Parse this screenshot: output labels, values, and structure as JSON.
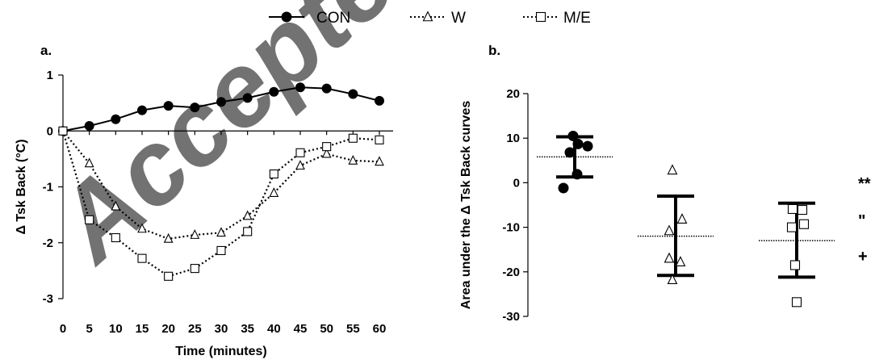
{
  "watermark": "Accepted",
  "legend": [
    {
      "label": "CON",
      "marker": "circle-filled",
      "line": "solid"
    },
    {
      "label": "W",
      "marker": "triangle-open",
      "line": "dotted"
    },
    {
      "label": "M/E",
      "marker": "square-open",
      "line": "dotted"
    }
  ],
  "chart_data": [
    {
      "type": "line",
      "panel_label": "a.",
      "xlabel": "Time (minutes)",
      "ylabel": "Δ Tsk Back (°C)",
      "x": [
        0,
        5,
        10,
        15,
        20,
        25,
        30,
        35,
        40,
        45,
        50,
        55,
        60
      ],
      "xlim": [
        0,
        60
      ],
      "ylim": [
        -3,
        1
      ],
      "xticks": [
        "0",
        "5",
        "10",
        "15",
        "20",
        "25",
        "30",
        "35",
        "40",
        "45",
        "50",
        "55",
        "60"
      ],
      "yticks": [
        "1",
        "0",
        "-1",
        "-2",
        "-3"
      ],
      "ytick_values": [
        1,
        0,
        -1,
        -2,
        -3
      ],
      "series": [
        {
          "name": "CON",
          "values": [
            0,
            0.09,
            0.21,
            0.37,
            0.45,
            0.42,
            0.52,
            0.59,
            0.7,
            0.78,
            0.76,
            0.66,
            0.54
          ]
        },
        {
          "name": "W",
          "values": [
            0,
            -0.58,
            -1.35,
            -1.75,
            -1.93,
            -1.86,
            -1.82,
            -1.52,
            -1.11,
            -0.62,
            -0.41,
            -0.53,
            -0.55
          ]
        },
        {
          "name": "M/E",
          "values": [
            0,
            -1.59,
            -1.91,
            -2.28,
            -2.6,
            -2.46,
            -2.14,
            -1.8,
            -0.77,
            -0.39,
            -0.28,
            -0.13,
            -0.16
          ]
        }
      ],
      "grid": false,
      "legend_position": "top-center"
    },
    {
      "type": "scatter",
      "panel_label": "b.",
      "ylabel": "Area under the Δ Tsk Back curves",
      "ylim": [
        -30,
        20
      ],
      "yticks": [
        "20",
        "10",
        "0",
        "-10",
        "-20",
        "-30"
      ],
      "ytick_values": [
        20,
        10,
        0,
        -10,
        -20,
        -30
      ],
      "groups": [
        {
          "name": "CON",
          "marker": "circle-filled",
          "points": [
            10.5,
            8.7,
            8.2,
            6.8,
            1.9,
            -1.2
          ],
          "mean": 5.8,
          "sd_upper": 10.3,
          "sd_lower": 1.3
        },
        {
          "name": "W",
          "marker": "triangle-open",
          "points": [
            2.8,
            -8.2,
            -10.8,
            -17.0,
            -17.8,
            -21.8
          ],
          "mean": -12.0,
          "sd_upper": -3.0,
          "sd_lower": -20.8
        },
        {
          "name": "M/E",
          "marker": "square-open",
          "points": [
            -5.9,
            -6.1,
            -9.3,
            -10.0,
            -18.5,
            -26.8
          ],
          "mean": -13.0,
          "sd_upper": -4.6,
          "sd_lower": -21.2
        }
      ],
      "significance_marks": [
        "**",
        "\"",
        "+"
      ]
    }
  ]
}
